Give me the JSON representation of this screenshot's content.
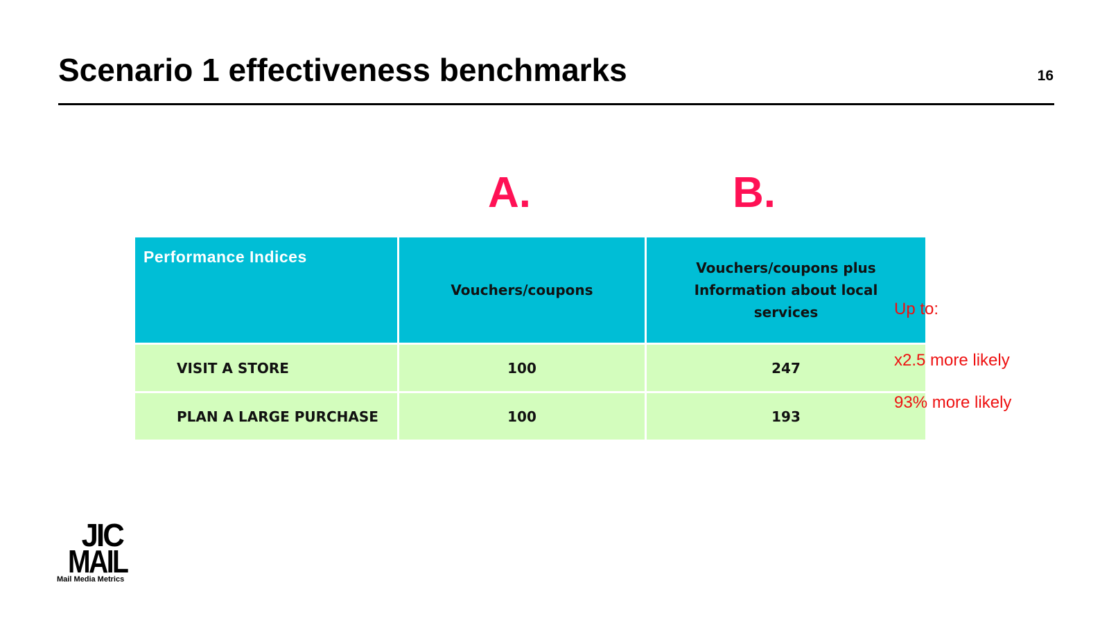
{
  "slide": {
    "title": "Scenario 1 effectiveness benchmarks",
    "page_number": "16"
  },
  "options": {
    "a_label": "A.",
    "b_label": "B."
  },
  "table": {
    "header_label": "Performance Indices",
    "columns": [
      "Vouchers/coupons",
      "Vouchers/coupons plus Information about local services"
    ],
    "rows": [
      {
        "label": "VISIT A STORE",
        "a": "100",
        "b": "247"
      },
      {
        "label": "PLAN A LARGE PURCHASE",
        "a": "100",
        "b": "193"
      }
    ]
  },
  "notes": {
    "up_to": "Up to:",
    "row1": "x2.5 more likely",
    "row2": "93% more likely"
  },
  "logo": {
    "line1": "JIC",
    "line2": "MAIL",
    "tagline": "Mail Media Metrics"
  },
  "colors": {
    "header_bg": "#00bed6",
    "row_bg": "#d3fdbd",
    "option_letter": "#ff1155",
    "note_text": "#ee1111"
  }
}
